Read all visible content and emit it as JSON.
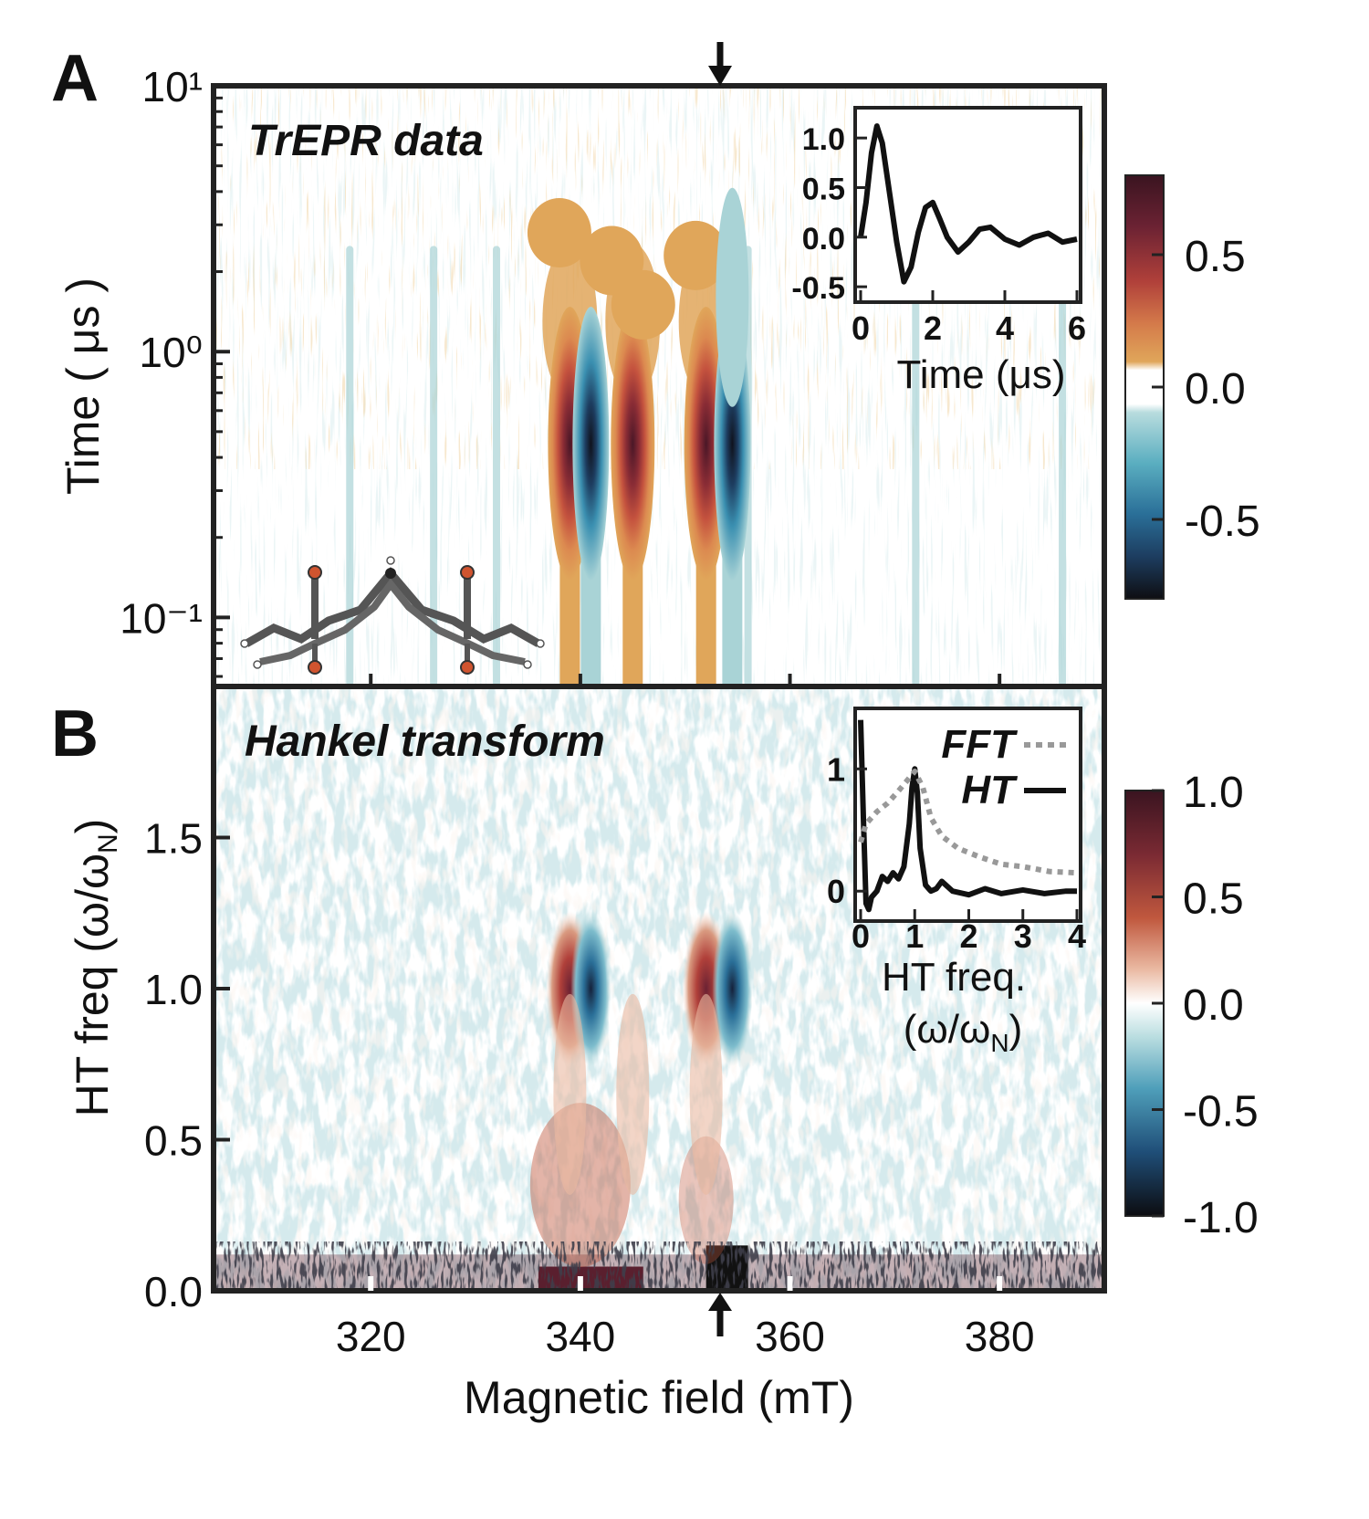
{
  "figure": {
    "panel_a_letter": "A",
    "panel_b_letter": "B",
    "xlabel": "Magnetic field (mT)"
  },
  "colors": {
    "frame": "#222222",
    "bg": "#ffffff",
    "orange": "#e0a65a",
    "orange2": "#d47a4a",
    "red": "#b0403a",
    "maroon": "#5a1f2e",
    "cyan": "#a9d3d6",
    "blue": "#3a8fb0",
    "darkblue": "#1b3a5c",
    "black": "#111111"
  },
  "chart_data": [
    {
      "type": "heatmap",
      "panel": "A",
      "title": "TrEPR data",
      "xlabel": "Magnetic field (mT)",
      "ylabel": "Time ( μs )",
      "xlim": [
        305,
        390
      ],
      "yscale": "log",
      "ylim": [
        0.055,
        10
      ],
      "yticks": [
        0.1,
        1,
        10
      ],
      "ytick_labels": [
        "10⁻¹",
        "10⁰",
        "10¹"
      ],
      "xticks": [
        320,
        340,
        360,
        380
      ],
      "marker_field_mT": 353,
      "features": [
        {
          "field_mT": 339,
          "sign": "positive",
          "peak_time_us": 0.45
        },
        {
          "field_mT": 341,
          "sign": "negative",
          "peak_time_us": 0.45
        },
        {
          "field_mT": 345,
          "sign": "positive",
          "peak_time_us": 0.45
        },
        {
          "field_mT": 352,
          "sign": "positive",
          "peak_time_us": 0.45
        },
        {
          "field_mT": 354.5,
          "sign": "negative",
          "peak_time_us": 0.45
        }
      ],
      "colorbar": {
        "range": [
          -0.8,
          0.8
        ],
        "ticks": [
          0.5,
          0.0,
          -0.5
        ],
        "tick_labels": [
          "0.5",
          "0.0",
          "-0.5"
        ]
      }
    },
    {
      "type": "line",
      "panel": "A-inset",
      "xlabel": "Time (μs)",
      "xlim": [
        0,
        6
      ],
      "ylim": [
        -0.6,
        1.25
      ],
      "xticks": [
        0,
        2,
        4,
        6
      ],
      "xtick_labels": [
        "0",
        "2",
        "4",
        "6"
      ],
      "yticks": [
        1.0,
        0.5,
        0.0,
        -0.5
      ],
      "ytick_labels": [
        "1.0",
        "0.5",
        "0.0",
        "-0.5"
      ],
      "x": [
        0,
        0.15,
        0.3,
        0.45,
        0.6,
        0.8,
        1.0,
        1.2,
        1.4,
        1.6,
        1.8,
        2.0,
        2.2,
        2.4,
        2.7,
        3.0,
        3.3,
        3.6,
        4.0,
        4.4,
        4.8,
        5.2,
        5.6,
        6.0
      ],
      "y": [
        0.0,
        0.35,
        0.85,
        1.12,
        0.95,
        0.45,
        -0.05,
        -0.45,
        -0.3,
        0.05,
        0.3,
        0.35,
        0.18,
        0.0,
        -0.15,
        -0.05,
        0.08,
        0.1,
        -0.02,
        -0.08,
        0.0,
        0.04,
        -0.05,
        -0.02
      ]
    },
    {
      "type": "heatmap",
      "panel": "B",
      "title": "Hankel transform",
      "xlabel": "Magnetic field (mT)",
      "ylabel": "HT freq (ω/ω",
      "ylabel_sub": "N",
      "ylabel_end": ")",
      "xlim": [
        305,
        390
      ],
      "ylim": [
        0,
        2.0
      ],
      "yticks": [
        0.0,
        0.5,
        1.0,
        1.5
      ],
      "ytick_labels": [
        "0.0",
        "0.5",
        "1.0",
        "1.5"
      ],
      "xticks": [
        320,
        340,
        360,
        380
      ],
      "xtick_labels": [
        "320",
        "340",
        "360",
        "380"
      ],
      "marker_field_mT": 353,
      "features": [
        {
          "field_mT": 339,
          "sign": "positive",
          "freq": 1.0
        },
        {
          "field_mT": 341,
          "sign": "negative",
          "freq": 1.0
        },
        {
          "field_mT": 352,
          "sign": "positive",
          "freq": 1.0
        },
        {
          "field_mT": 354.5,
          "sign": "negative",
          "freq": 1.0
        }
      ],
      "colorbar": {
        "range": [
          -1.0,
          1.0
        ],
        "ticks": [
          1.0,
          0.5,
          0.0,
          -0.5,
          -1.0
        ],
        "tick_labels": [
          "1.0",
          "0.5",
          "0.0",
          "-0.5",
          "-1.0"
        ]
      }
    },
    {
      "type": "line",
      "panel": "B-inset",
      "xlabel": "HT freq.",
      "xlabel2": "(ω/ω",
      "xlabel2_sub": "N",
      "xlabel2_end": ")",
      "xlim": [
        0,
        4
      ],
      "ylim": [
        -0.2,
        1.45
      ],
      "xticks": [
        0,
        1,
        2,
        3,
        4
      ],
      "xtick_labels": [
        "0",
        "1",
        "2",
        "3",
        "4"
      ],
      "yticks": [
        1,
        0
      ],
      "ytick_labels": [
        "1",
        "0"
      ],
      "legend": [
        {
          "name": "FFT",
          "style": "dotted"
        },
        {
          "name": "HT",
          "style": "solid"
        }
      ],
      "series": [
        {
          "name": "HT",
          "x": [
            0,
            0.05,
            0.1,
            0.15,
            0.2,
            0.3,
            0.4,
            0.5,
            0.6,
            0.7,
            0.8,
            0.9,
            0.95,
            1.0,
            1.05,
            1.1,
            1.2,
            1.3,
            1.4,
            1.5,
            1.7,
            2.0,
            2.3,
            2.6,
            3.0,
            3.4,
            3.8,
            4.0
          ],
          "y": [
            1.4,
            0.6,
            -0.1,
            -0.15,
            -0.05,
            0.0,
            0.12,
            0.08,
            0.15,
            0.1,
            0.2,
            0.55,
            0.85,
            1.0,
            0.8,
            0.35,
            0.05,
            0.0,
            0.02,
            0.08,
            0.0,
            -0.03,
            0.02,
            -0.02,
            0.01,
            -0.02,
            0.0,
            0.0
          ]
        },
        {
          "name": "FFT",
          "x": [
            0,
            0.1,
            0.3,
            0.5,
            0.7,
            0.85,
            1.0,
            1.15,
            1.3,
            1.5,
            1.8,
            2.2,
            2.6,
            3.0,
            3.5,
            4.0
          ],
          "y": [
            0.4,
            0.55,
            0.65,
            0.72,
            0.82,
            0.9,
            0.98,
            0.85,
            0.6,
            0.45,
            0.35,
            0.28,
            0.22,
            0.2,
            0.16,
            0.15
          ]
        }
      ]
    }
  ]
}
